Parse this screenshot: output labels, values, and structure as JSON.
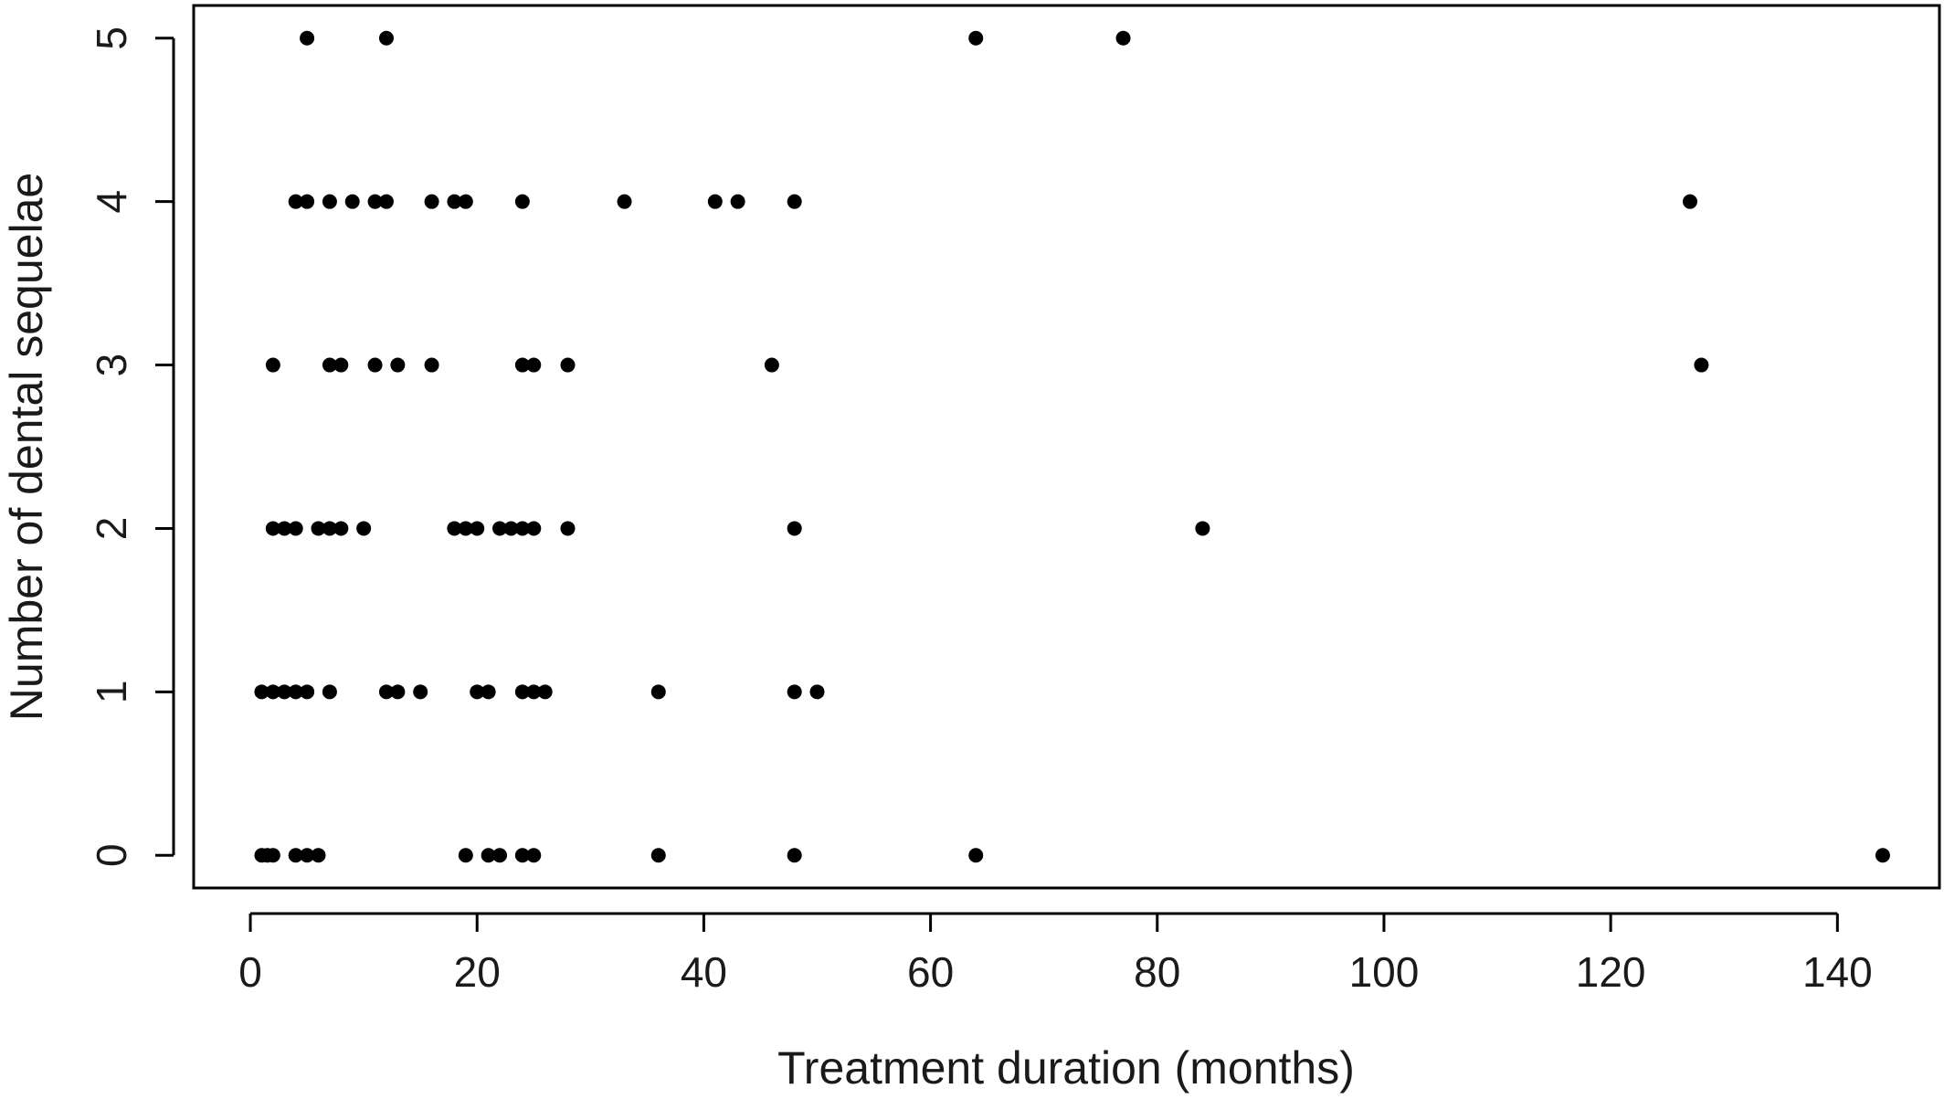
{
  "chart_data": {
    "type": "scatter",
    "title": "",
    "xlabel": "Treatment duration (months)",
    "ylabel": "Number of dental sequelae",
    "xlim": [
      -5,
      149
    ],
    "ylim": [
      -0.2,
      5.2
    ],
    "xticks": [
      0,
      20,
      40,
      60,
      80,
      100,
      120,
      140
    ],
    "yticks": [
      0,
      1,
      2,
      3,
      4,
      5
    ],
    "grid": false,
    "point_color": "#000000",
    "points": [
      {
        "x": 5,
        "y": 5
      },
      {
        "x": 12,
        "y": 5
      },
      {
        "x": 64,
        "y": 5
      },
      {
        "x": 77,
        "y": 5
      },
      {
        "x": 4,
        "y": 4
      },
      {
        "x": 5,
        "y": 4
      },
      {
        "x": 7,
        "y": 4
      },
      {
        "x": 9,
        "y": 4
      },
      {
        "x": 11,
        "y": 4
      },
      {
        "x": 12,
        "y": 4
      },
      {
        "x": 16,
        "y": 4
      },
      {
        "x": 18,
        "y": 4
      },
      {
        "x": 19,
        "y": 4
      },
      {
        "x": 24,
        "y": 4
      },
      {
        "x": 33,
        "y": 4
      },
      {
        "x": 41,
        "y": 4
      },
      {
        "x": 43,
        "y": 4
      },
      {
        "x": 48,
        "y": 4
      },
      {
        "x": 127,
        "y": 4
      },
      {
        "x": 2,
        "y": 3
      },
      {
        "x": 7,
        "y": 3
      },
      {
        "x": 8,
        "y": 3
      },
      {
        "x": 11,
        "y": 3
      },
      {
        "x": 13,
        "y": 3
      },
      {
        "x": 16,
        "y": 3
      },
      {
        "x": 24,
        "y": 3
      },
      {
        "x": 25,
        "y": 3
      },
      {
        "x": 28,
        "y": 3
      },
      {
        "x": 46,
        "y": 3
      },
      {
        "x": 128,
        "y": 3
      },
      {
        "x": 2,
        "y": 2
      },
      {
        "x": 3,
        "y": 2
      },
      {
        "x": 4,
        "y": 2
      },
      {
        "x": 6,
        "y": 2
      },
      {
        "x": 7,
        "y": 2
      },
      {
        "x": 8,
        "y": 2
      },
      {
        "x": 10,
        "y": 2
      },
      {
        "x": 18,
        "y": 2
      },
      {
        "x": 19,
        "y": 2
      },
      {
        "x": 20,
        "y": 2
      },
      {
        "x": 22,
        "y": 2
      },
      {
        "x": 23,
        "y": 2
      },
      {
        "x": 24,
        "y": 2
      },
      {
        "x": 25,
        "y": 2
      },
      {
        "x": 28,
        "y": 2
      },
      {
        "x": 48,
        "y": 2
      },
      {
        "x": 84,
        "y": 2
      },
      {
        "x": 1,
        "y": 1
      },
      {
        "x": 2,
        "y": 1
      },
      {
        "x": 3,
        "y": 1
      },
      {
        "x": 4,
        "y": 1
      },
      {
        "x": 5,
        "y": 1
      },
      {
        "x": 7,
        "y": 1
      },
      {
        "x": 12,
        "y": 1
      },
      {
        "x": 13,
        "y": 1
      },
      {
        "x": 15,
        "y": 1
      },
      {
        "x": 20,
        "y": 1
      },
      {
        "x": 21,
        "y": 1
      },
      {
        "x": 24,
        "y": 1
      },
      {
        "x": 25,
        "y": 1
      },
      {
        "x": 26,
        "y": 1
      },
      {
        "x": 36,
        "y": 1
      },
      {
        "x": 48,
        "y": 1
      },
      {
        "x": 50,
        "y": 1
      },
      {
        "x": 1,
        "y": 0
      },
      {
        "x": 1.5,
        "y": 0
      },
      {
        "x": 2,
        "y": 0
      },
      {
        "x": 4,
        "y": 0
      },
      {
        "x": 5,
        "y": 0
      },
      {
        "x": 6,
        "y": 0
      },
      {
        "x": 19,
        "y": 0
      },
      {
        "x": 21,
        "y": 0
      },
      {
        "x": 22,
        "y": 0
      },
      {
        "x": 24,
        "y": 0
      },
      {
        "x": 25,
        "y": 0
      },
      {
        "x": 36,
        "y": 0
      },
      {
        "x": 48,
        "y": 0
      },
      {
        "x": 64,
        "y": 0
      },
      {
        "x": 144,
        "y": 0
      }
    ]
  }
}
